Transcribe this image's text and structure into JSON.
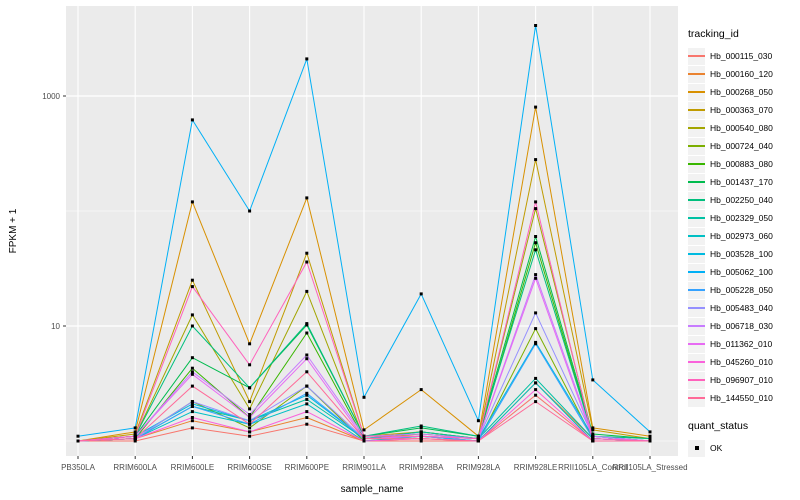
{
  "figure": {
    "bg": "#FFFFFF",
    "panel_bg": "#EBEBEB",
    "grid_color": "#FFFFFF",
    "tick_color": "#333333",
    "axis_text_color": "#4D4D4D",
    "axis_title_color": "#000000",
    "point_color": "#000000"
  },
  "chart_data": {
    "type": "line",
    "title": "",
    "xlabel": "sample_name",
    "ylabel": "FPKM + 1",
    "y_scale": "log10",
    "y_ticks": [
      {
        "label": "1000",
        "value": 1000
      },
      {
        "label": "10",
        "value": 10
      }
    ],
    "y_minor": [
      1,
      100
    ],
    "ylim": [
      0.8,
      5800
    ],
    "grid": true,
    "legend_position": "right",
    "legend_title": "tracking_id",
    "x_categories": [
      "PB350LA",
      "RRIM600LA",
      "RRIM600LE",
      "RRIM600SE",
      "RRIM600PE",
      "RRIM901LA",
      "RRIM928BA",
      "RRIM928LA",
      "RRIM928LE",
      "RRII105LA_Control",
      "RRII105LA_Stressed"
    ],
    "series": [
      {
        "name": "Hb_000115_030",
        "color": "#F8766D",
        "values": [
          1,
          1,
          1.3,
          1.1,
          1.4,
          1,
          1,
          1,
          2.5,
          1,
          1
        ]
      },
      {
        "name": "Hb_000160_120",
        "color": "#EA8331",
        "values": [
          1,
          1.05,
          1.5,
          1.2,
          1.6,
          1,
          1.05,
          1,
          3.2,
          1.05,
          1
        ]
      },
      {
        "name": "Hb_000268_050",
        "color": "#D89000",
        "values": [
          1,
          1.2,
          120,
          7,
          130,
          1.25,
          2.8,
          1.1,
          800,
          1.3,
          1.1
        ]
      },
      {
        "name": "Hb_000363_070",
        "color": "#C09B00",
        "values": [
          1,
          1.15,
          25,
          2.2,
          43,
          1.1,
          1.2,
          1.05,
          280,
          1.25,
          1.05
        ]
      },
      {
        "name": "Hb_000540_080",
        "color": "#A3A500",
        "values": [
          1,
          1.1,
          12.5,
          1.9,
          20,
          1.05,
          1.15,
          1.05,
          105,
          1.1,
          1
        ]
      },
      {
        "name": "Hb_000724_040",
        "color": "#7CAE00",
        "values": [
          1,
          1.05,
          2.2,
          1.3,
          3,
          1,
          1.1,
          1,
          9.5,
          1.05,
          1
        ]
      },
      {
        "name": "Hb_000883_080",
        "color": "#39B600",
        "values": [
          1,
          1.05,
          4.3,
          1.6,
          8.7,
          1.05,
          1.2,
          1.05,
          53,
          1.1,
          1
        ]
      },
      {
        "name": "Hb_001437_170",
        "color": "#00BB4E",
        "values": [
          1,
          1.1,
          5.3,
          2.9,
          10.2,
          1.1,
          1.3,
          1.1,
          60,
          1.15,
          1.05
        ]
      },
      {
        "name": "Hb_002250_040",
        "color": "#00BF7D",
        "values": [
          1,
          1.1,
          10,
          2.9,
          10.5,
          1.1,
          1.35,
          1.1,
          46,
          1.1,
          1.05
        ]
      },
      {
        "name": "Hb_002329_050",
        "color": "#00C1A3",
        "values": [
          1,
          1.05,
          2.0,
          1.5,
          2.3,
          1.05,
          1.2,
          1.05,
          3.5,
          1.05,
          1
        ]
      },
      {
        "name": "Hb_002973_060",
        "color": "#00BFC4",
        "values": [
          1,
          1.05,
          1.8,
          1.4,
          2.1,
          1,
          1.1,
          1,
          3.2,
          1,
          1
        ]
      },
      {
        "name": "Hb_003528_100",
        "color": "#00BAE0",
        "values": [
          1,
          1.1,
          2.1,
          1.5,
          2.5,
          1.05,
          1.1,
          1.05,
          7.2,
          1.1,
          1
        ]
      },
      {
        "name": "Hb_005062_100",
        "color": "#00B0F6",
        "values": [
          1.1,
          1.3,
          620,
          100,
          2100,
          2.4,
          19,
          1.5,
          4100,
          3.4,
          1.2
        ]
      },
      {
        "name": "Hb_005228_050",
        "color": "#35A2FF",
        "values": [
          1,
          1.05,
          2.0,
          1.4,
          2.6,
          1.05,
          1.1,
          1,
          7,
          1.05,
          1
        ]
      },
      {
        "name": "Hb_005483_040",
        "color": "#9590FF",
        "values": [
          1,
          1.05,
          2.2,
          1.5,
          3.0,
          1.05,
          1.1,
          1.05,
          13,
          1.1,
          1
        ]
      },
      {
        "name": "Hb_006718_030",
        "color": "#C77CFF",
        "values": [
          1,
          1.1,
          4.0,
          1.7,
          5.6,
          1.1,
          1.15,
          1.05,
          28,
          1.1,
          1
        ]
      },
      {
        "name": "Hb_011362_010",
        "color": "#E76BF3",
        "values": [
          1,
          1.1,
          3.8,
          1.6,
          5.2,
          1.05,
          1.1,
          1.05,
          26,
          1.05,
          1
        ]
      },
      {
        "name": "Hb_045260_010",
        "color": "#FA62DB",
        "values": [
          1,
          1.05,
          1.6,
          1.2,
          1.8,
          1,
          1.05,
          1,
          2.8,
          1,
          1
        ]
      },
      {
        "name": "Hb_096907_010",
        "color": "#FF62BC",
        "values": [
          1,
          1.1,
          22,
          4.6,
          36,
          1.1,
          1.1,
          1.05,
          120,
          1.05,
          1
        ]
      },
      {
        "name": "Hb_144550_010",
        "color": "#FF6A98",
        "values": [
          1,
          1.05,
          3.0,
          1.4,
          4.0,
          1.05,
          1.05,
          1,
          2.2,
          1,
          1
        ]
      }
    ],
    "quant_legend": {
      "title": "quant_status",
      "items": [
        {
          "label": "OK",
          "marker": "black-square"
        }
      ]
    }
  }
}
